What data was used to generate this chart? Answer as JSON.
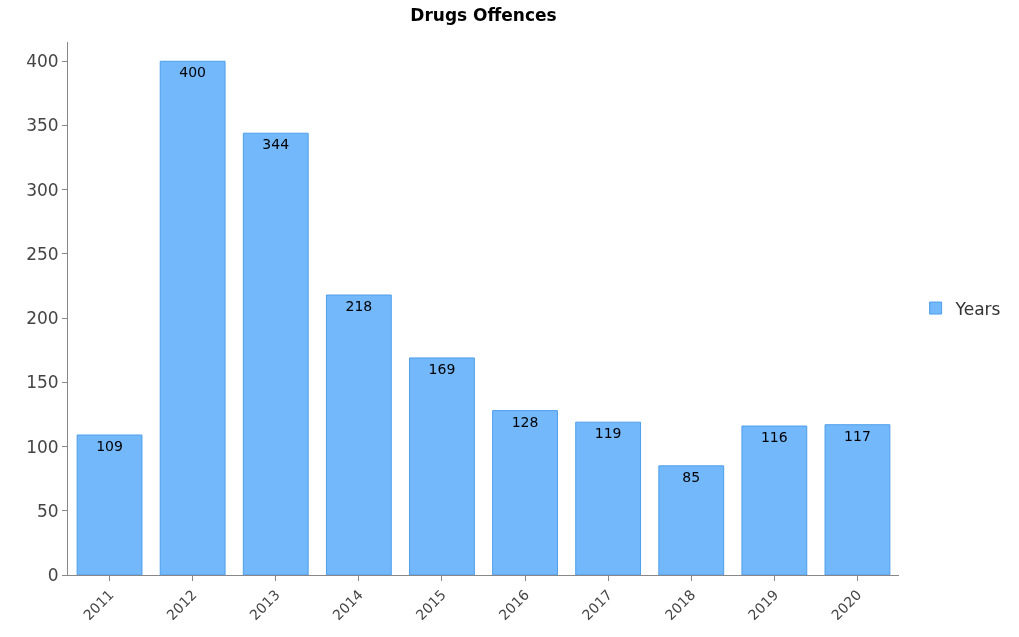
{
  "chart_data": {
    "type": "bar",
    "title": "Drugs Offences",
    "categories": [
      "2011",
      "2012",
      "2013",
      "2014",
      "2015",
      "2016",
      "2017",
      "2018",
      "2019",
      "2020"
    ],
    "series": [
      {
        "name": "Years",
        "color": "#74b8fc",
        "values": [
          109,
          400,
          344,
          218,
          169,
          128,
          119,
          85,
          116,
          117
        ]
      }
    ],
    "ylim": [
      0,
      415
    ],
    "yticks": [
      0,
      50,
      100,
      150,
      200,
      250,
      300,
      350,
      400
    ],
    "grid": false,
    "legend": "right",
    "data_labels": true
  }
}
